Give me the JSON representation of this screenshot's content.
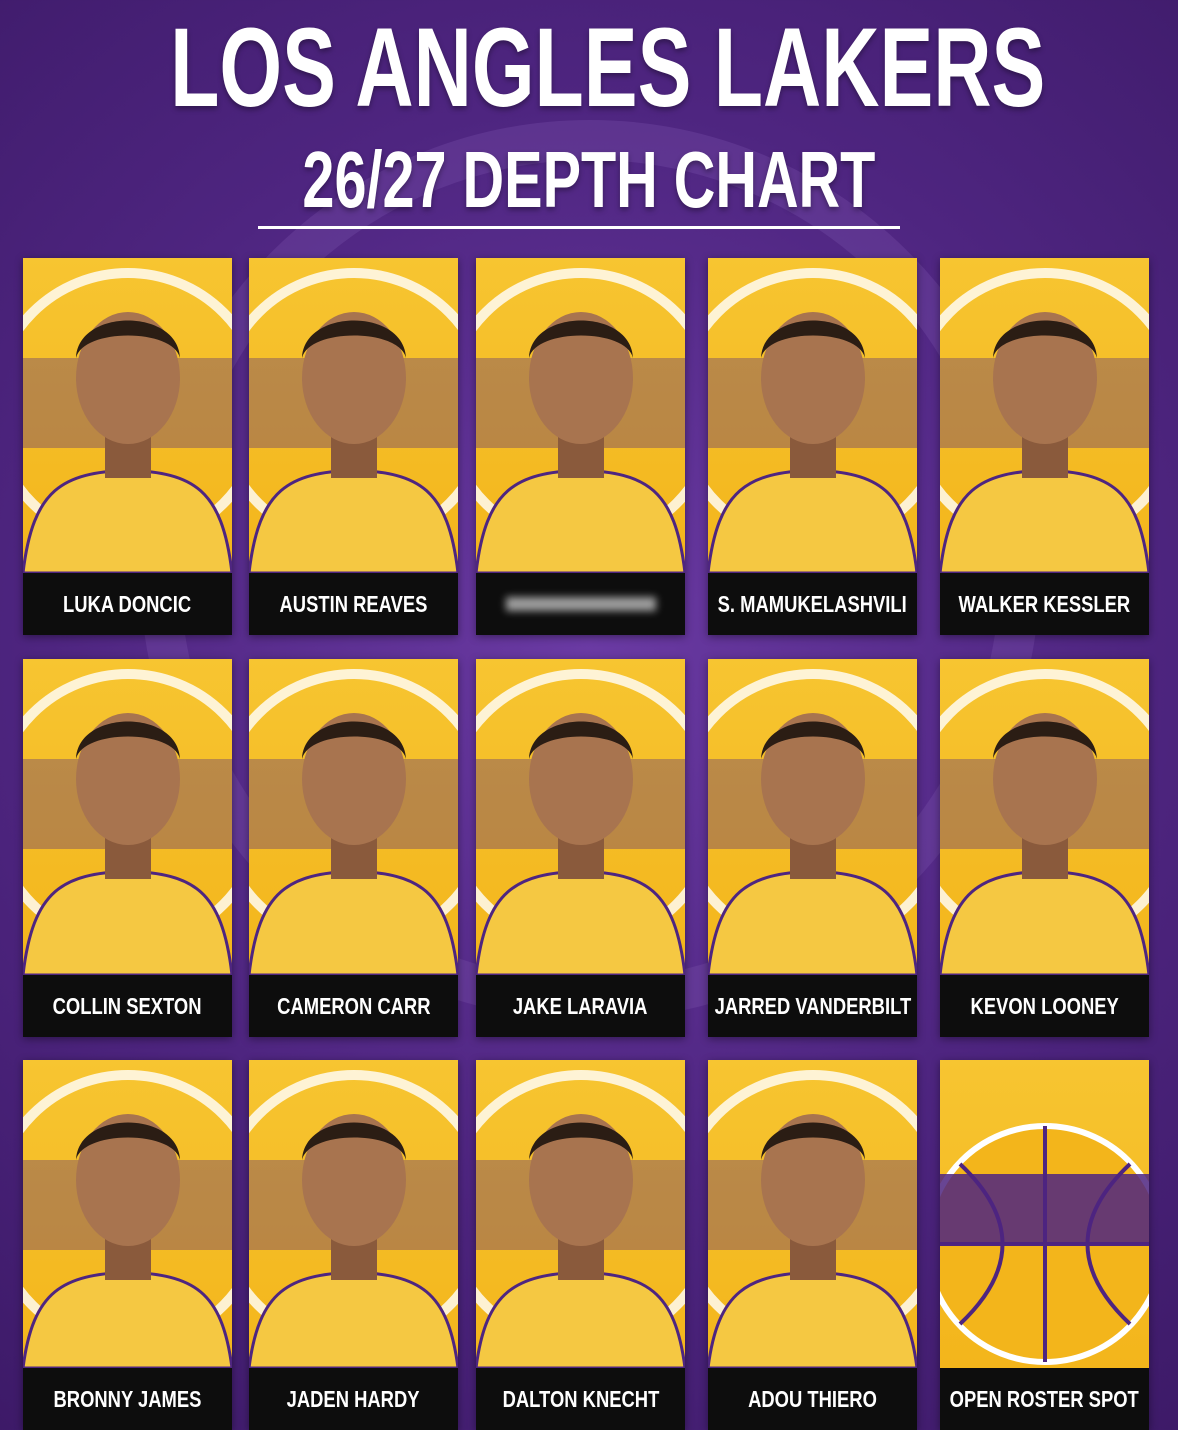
{
  "header": {
    "title": "LOS ANGLES LAKERS",
    "subtitle": "26/27 DEPTH CHART"
  },
  "cards": [
    {
      "name": "LUKA DONCIC"
    },
    {
      "name": "AUSTIN REAVES"
    },
    {
      "name": null
    },
    {
      "name": "S. MAMUKELASHVILI"
    },
    {
      "name": "WALKER KESSLER"
    },
    {
      "name": "COLLIN SEXTON"
    },
    {
      "name": "CAMERON CARR"
    },
    {
      "name": "JAKE LARAVIA"
    },
    {
      "name": "JARRED VANDERBILT"
    },
    {
      "name": "KEVON LOONEY"
    },
    {
      "name": "BRONNY JAMES"
    },
    {
      "name": "JADEN HARDY"
    },
    {
      "name": "DALTON KNECHT"
    },
    {
      "name": "ADOU THIERO"
    },
    {
      "name": "OPEN ROSTER SPOT"
    }
  ]
}
